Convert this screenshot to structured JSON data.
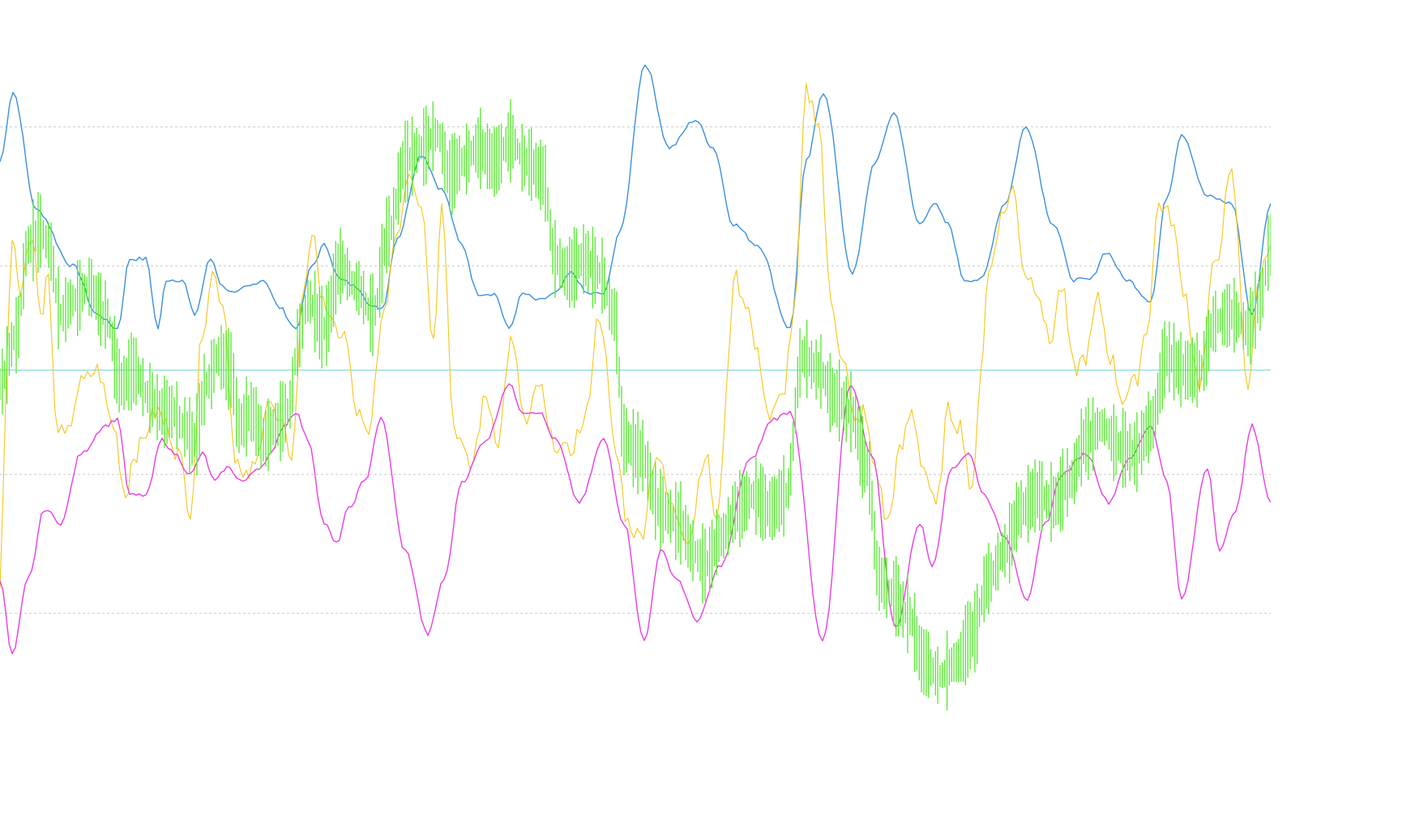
{
  "chart_data": {
    "type": "line",
    "title": "",
    "xlabel": "",
    "ylabel": "",
    "xlim": [
      0,
      1568
    ],
    "ylim": [
      0,
      100
    ],
    "grid": false,
    "legend": "none",
    "reference_lines": [
      {
        "value": 85,
        "style": "dashed",
        "color": "#c8c8c8"
      },
      {
        "value": 65,
        "style": "dashed",
        "color": "#c8c8c8"
      },
      {
        "value": 50,
        "style": "solid",
        "color": "#5fd3cf"
      },
      {
        "value": 35,
        "style": "dashed",
        "color": "#c8c8c8"
      },
      {
        "value": 15,
        "style": "dashed",
        "color": "#c8c8c8"
      }
    ],
    "series": [
      {
        "color": "#3a8fdc",
        "style": "line",
        "x": [
          0,
          16,
          45,
          90,
          120,
          145,
          160,
          180,
          195,
          205,
          225,
          240,
          260,
          275,
          290,
          305,
          325,
          345,
          365,
          385,
          400,
          420,
          440,
          460,
          472,
          490,
          520,
          545,
          570,
          590,
          610,
          628,
          645,
          665,
          685,
          705,
          725,
          745,
          765,
          796,
          826,
          858,
          880,
          905,
          935,
          975,
          995,
          1016,
          1052,
          1080,
          1103,
          1135,
          1152,
          1170,
          1190,
          1210,
          1240,
          1266,
          1300,
          1325,
          1345,
          1365,
          1390,
          1420,
          1440,
          1458,
          1490,
          1520,
          1545,
          1568
        ],
        "y": [
          80,
          90,
          73,
          65,
          58,
          56,
          66,
          66,
          56,
          63,
          63,
          58,
          66,
          62,
          61,
          62,
          63,
          59,
          56,
          65,
          68,
          63,
          62,
          59,
          59,
          69,
          81,
          76,
          68,
          61,
          61,
          56,
          61,
          60,
          61,
          64,
          61,
          61,
          70,
          94,
          82,
          86,
          82,
          71,
          68,
          56,
          80,
          90,
          64,
          80,
          87,
          71,
          74,
          71,
          63,
          63,
          74,
          85,
          71,
          63,
          63,
          67,
          63,
          60,
          75,
          84,
          75,
          74,
          58,
          74
        ]
      },
      {
        "color": "#f5c518",
        "style": "line",
        "x": [
          0,
          8,
          15,
          25,
          40,
          50,
          60,
          68,
          80,
          100,
          120,
          140,
          155,
          165,
          195,
          205,
          220,
          235,
          250,
          262,
          275,
          290,
          300,
          315,
          330,
          345,
          360,
          375,
          385,
          395,
          410,
          425,
          440,
          455,
          470,
          490,
          505,
          520,
          535,
          545,
          560,
          580,
          600,
          615,
          630,
          650,
          665,
          680,
          700,
          720,
          740,
          760,
          775,
          790,
          810,
          830,
          850,
          870,
          885,
          900,
          905,
          920,
          935,
          950,
          965,
          980,
          995,
          1010,
          1025,
          1040,
          1055,
          1065,
          1080,
          1095,
          1110,
          1125,
          1140,
          1155,
          1170,
          1185,
          1200,
          1210,
          1220,
          1235,
          1250,
          1265,
          1280,
          1295,
          1310,
          1325,
          1340,
          1355,
          1370,
          1385,
          1400,
          1415,
          1430,
          1445,
          1460,
          1480,
          1500,
          1520,
          1540,
          1555,
          1568
        ],
        "y": [
          18,
          50,
          70,
          62,
          70,
          58,
          64,
          43,
          40,
          48,
          50,
          42,
          32,
          38,
          44,
          42,
          38,
          30,
          56,
          64,
          60,
          38,
          34,
          36,
          46,
          42,
          38,
          62,
          70,
          62,
          56,
          55,
          44,
          40,
          56,
          70,
          79,
          74,
          54,
          75,
          42,
          36,
          46,
          40,
          54,
          42,
          48,
          40,
          38,
          42,
          58,
          38,
          28,
          26,
          38,
          30,
          26,
          38,
          28,
          52,
          64,
          60,
          52,
          43,
          46,
          58,
          90,
          86,
          60,
          52,
          42,
          44,
          36,
          28,
          38,
          44,
          36,
          30,
          44,
          42,
          32,
          50,
          64,
          72,
          76,
          64,
          62,
          54,
          62,
          50,
          52,
          60,
          52,
          46,
          48,
          56,
          74,
          72,
          62,
          48,
          66,
          78,
          48,
          64,
          68
        ]
      },
      {
        "color": "#e83ee0",
        "style": "line",
        "x": [
          0,
          15,
          35,
          55,
          75,
          100,
          130,
          145,
          160,
          180,
          200,
          215,
          235,
          250,
          265,
          280,
          300,
          320,
          335,
          350,
          365,
          380,
          400,
          415,
          430,
          450,
          470,
          500,
          528,
          548,
          570,
          600,
          628,
          645,
          665,
          685,
          715,
          745,
          770,
          795,
          815,
          835,
          860,
          890,
          925,
          955,
          975,
          1015,
          1050,
          1075,
          1105,
          1135,
          1150,
          1175,
          1195,
          1215,
          1240,
          1268,
          1290,
          1310,
          1340,
          1368,
          1392,
          1420,
          1440,
          1458,
          1490,
          1505,
          1525,
          1545,
          1568
        ],
        "y": [
          20,
          9,
          20,
          30,
          28,
          38,
          42,
          43,
          32,
          32,
          40,
          38,
          35,
          38,
          34,
          36,
          34,
          36,
          38,
          42,
          44,
          40,
          28,
          25,
          30,
          34,
          43,
          24,
          12,
          20,
          34,
          40,
          48,
          44,
          44,
          40,
          31,
          40,
          28,
          11,
          24,
          20,
          14,
          22,
          37,
          43,
          44,
          11,
          48,
          38,
          13,
          28,
          22,
          36,
          38,
          32,
          26,
          17,
          28,
          35,
          38,
          31,
          37,
          42,
          34,
          17,
          36,
          24,
          30,
          42,
          31
        ]
      },
      {
        "color": "#5ee83a",
        "style": "bars",
        "x": [
          0,
          20,
          35,
          50,
          60,
          75,
          90,
          110,
          130,
          150,
          165,
          185,
          200,
          215,
          225,
          240,
          255,
          270,
          285,
          295,
          310,
          325,
          340,
          355,
          370,
          380,
          400,
          420,
          440,
          460,
          480,
          500,
          520,
          540,
          555,
          570,
          590,
          610,
          630,
          650,
          670,
          685,
          700,
          720,
          740,
          758,
          770,
          790,
          815,
          840,
          855,
          870,
          890,
          910,
          930,
          950,
          970,
          990,
          1010,
          1030,
          1050,
          1070,
          1085,
          1100,
          1120,
          1140,
          1160,
          1180,
          1200,
          1220,
          1240,
          1260,
          1280,
          1300,
          1320,
          1340,
          1360,
          1380,
          1400,
          1420,
          1440,
          1460,
          1480,
          1500,
          1520,
          1540,
          1555,
          1568
        ],
        "y": [
          48,
          55,
          68,
          70,
          68,
          58,
          60,
          62,
          58,
          48,
          50,
          46,
          44,
          44,
          42,
          40,
          48,
          52,
          50,
          42,
          44,
          40,
          42,
          44,
          55,
          60,
          56,
          65,
          62,
          58,
          70,
          80,
          82,
          84,
          78,
          80,
          82,
          80,
          83,
          80,
          78,
          66,
          64,
          66,
          64,
          58,
          40,
          38,
          30,
          28,
          24,
          22,
          26,
          30,
          32,
          30,
          32,
          52,
          50,
          46,
          44,
          36,
          20,
          18,
          15,
          8,
          6,
          8,
          12,
          20,
          24,
          30,
          32,
          31,
          34,
          40,
          42,
          39,
          38,
          42,
          52,
          50,
          50,
          57,
          58,
          56,
          60,
          68
        ]
      }
    ]
  }
}
